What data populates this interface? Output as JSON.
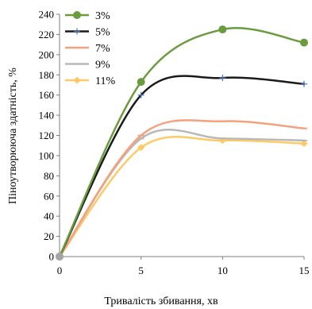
{
  "chart_data": {
    "type": "line",
    "title": "",
    "xlabel": "Тривалість збивання, хв",
    "ylabel": "Піноутворююча здатність, %",
    "x": [
      0,
      5,
      10,
      15
    ],
    "xlim": [
      0,
      15
    ],
    "ylim": [
      0,
      240
    ],
    "xticks": [
      "0",
      "5",
      "10",
      "15"
    ],
    "yticks": [
      "0",
      "20",
      "40",
      "60",
      "80",
      "100",
      "120",
      "140",
      "160",
      "180",
      "200",
      "220",
      "240"
    ],
    "grid": false,
    "legend_position": "top-left",
    "series": [
      {
        "name": "3%",
        "values": [
          0,
          173,
          225,
          212
        ],
        "color": "#6a9c3f",
        "marker": "circle"
      },
      {
        "name": "5%",
        "values": [
          0,
          160,
          177,
          171
        ],
        "color": "#1a1a1a",
        "marker": "plus"
      },
      {
        "name": "7%",
        "values": [
          0,
          120,
          134,
          127
        ],
        "color": "#f2a27e",
        "marker": "dash"
      },
      {
        "name": "9%",
        "values": [
          0,
          117,
          117,
          115
        ],
        "color": "#b8b8b8",
        "marker": "dash"
      },
      {
        "name": "11%",
        "values": [
          0,
          108,
          115,
          112
        ],
        "color": "#ffc966",
        "marker": "diamond"
      }
    ]
  }
}
